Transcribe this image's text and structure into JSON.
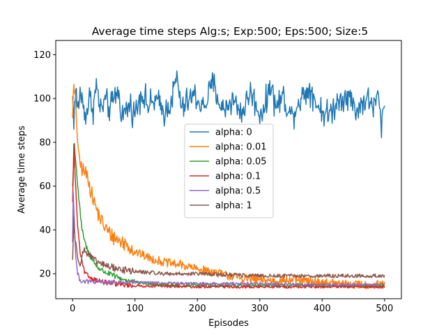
{
  "chart_data": {
    "type": "line",
    "title": "Average time steps Alg:s; Exp:500; Eps:500; Size:5",
    "xlabel": "Episodes",
    "ylabel": "Average time steps",
    "xlim": [
      -27,
      527
    ],
    "ylim": [
      8.6,
      126.5
    ],
    "xticks": [
      0,
      100,
      200,
      300,
      400,
      500
    ],
    "yticks": [
      20,
      40,
      60,
      80,
      100,
      120
    ],
    "grid": false,
    "legend_position": "center",
    "series": [
      {
        "name": "alpha: 0",
        "color": "#1f77b4",
        "kind": "noisy",
        "level": 97.5,
        "amplitude": 7,
        "values_sampled": [
          [
            0,
            102
          ],
          [
            2,
            86
          ],
          [
            5,
            110
          ],
          [
            8,
            91
          ],
          [
            12,
            108
          ],
          [
            17,
            96
          ],
          [
            22,
            88
          ],
          [
            27,
            103
          ],
          [
            33,
            94
          ],
          [
            38,
            113
          ],
          [
            45,
            92
          ],
          [
            52,
            100
          ],
          [
            60,
            93
          ],
          [
            72,
            109
          ],
          [
            80,
            88
          ],
          [
            92,
            97
          ],
          [
            100,
            89
          ],
          [
            110,
            108
          ],
          [
            122,
            95
          ],
          [
            133,
            101
          ],
          [
            148,
            90
          ],
          [
            160,
            103
          ],
          [
            167,
            120
          ],
          [
            175,
            92
          ],
          [
            183,
            99
          ],
          [
            195,
            105
          ],
          [
            210,
            94
          ],
          [
            225,
            115
          ],
          [
            240,
            92
          ],
          [
            256,
            101
          ],
          [
            272,
            90
          ],
          [
            285,
            108
          ],
          [
            300,
            89
          ],
          [
            312,
            99
          ],
          [
            316,
            118
          ],
          [
            325,
            95
          ],
          [
            338,
            104
          ],
          [
            350,
            87
          ],
          [
            365,
            102
          ],
          [
            380,
            111
          ],
          [
            395,
            94
          ],
          [
            410,
            88
          ],
          [
            425,
            100
          ],
          [
            440,
            106
          ],
          [
            455,
            92
          ],
          [
            470,
            102
          ],
          [
            485,
            95
          ],
          [
            490,
            108
          ],
          [
            494,
            78
          ],
          [
            500,
            97
          ]
        ]
      },
      {
        "name": "alpha: 0.01",
        "color": "#ff7f0e",
        "kind": "decay",
        "peak_x": 2,
        "peak_y": 105,
        "start_y": 94,
        "level": 15,
        "noise": 2,
        "values_sampled": [
          [
            0,
            94
          ],
          [
            2,
            105
          ],
          [
            5,
            97
          ],
          [
            10,
            72
          ],
          [
            15,
            68
          ],
          [
            20,
            66
          ],
          [
            25,
            64
          ],
          [
            30,
            57
          ],
          [
            40,
            48
          ],
          [
            50,
            42
          ],
          [
            60,
            38
          ],
          [
            75,
            35
          ],
          [
            90,
            33
          ],
          [
            100,
            30
          ],
          [
            125,
            27
          ],
          [
            150,
            25
          ],
          [
            175,
            24
          ],
          [
            200,
            22
          ],
          [
            225,
            21
          ],
          [
            250,
            19
          ],
          [
            275,
            18
          ],
          [
            300,
            17
          ],
          [
            350,
            17
          ],
          [
            400,
            16
          ],
          [
            450,
            15
          ],
          [
            500,
            15
          ]
        ]
      },
      {
        "name": "alpha: 0.05",
        "color": "#2ca02c",
        "kind": "decay",
        "peak_x": 3,
        "peak_y": 79,
        "start_y": 60,
        "level": 14.5,
        "noise": 0.7,
        "values_sampled": [
          [
            0,
            60
          ],
          [
            3,
            79
          ],
          [
            6,
            68
          ],
          [
            10,
            54
          ],
          [
            15,
            40
          ],
          [
            20,
            34
          ],
          [
            25,
            30
          ],
          [
            30,
            27
          ],
          [
            40,
            23
          ],
          [
            50,
            21
          ],
          [
            75,
            18
          ],
          [
            100,
            16
          ],
          [
            150,
            15
          ],
          [
            200,
            15
          ],
          [
            250,
            14.5
          ],
          [
            300,
            14.5
          ],
          [
            400,
            14.5
          ],
          [
            500,
            14.5
          ]
        ]
      },
      {
        "name": "alpha: 0.1",
        "color": "#d62728",
        "kind": "decay",
        "peak_x": 2,
        "peak_y": 79,
        "start_y": 52,
        "level": 14,
        "noise": 0.6,
        "values_sampled": [
          [
            0,
            52
          ],
          [
            2,
            79
          ],
          [
            4,
            65
          ],
          [
            8,
            42
          ],
          [
            12,
            30
          ],
          [
            16,
            24
          ],
          [
            20,
            20
          ],
          [
            30,
            18
          ],
          [
            40,
            17
          ],
          [
            60,
            15.5
          ],
          [
            80,
            15
          ],
          [
            100,
            14.5
          ],
          [
            200,
            14
          ],
          [
            300,
            14
          ],
          [
            400,
            14
          ],
          [
            500,
            14
          ]
        ]
      },
      {
        "name": "alpha: 0.5",
        "color": "#9467bd",
        "kind": "decay",
        "peak_x": 1,
        "peak_y": 57,
        "start_y": 35,
        "level": 15.5,
        "noise": 0.6,
        "values_sampled": [
          [
            0,
            35
          ],
          [
            1,
            57
          ],
          [
            3,
            42
          ],
          [
            5,
            28
          ],
          [
            8,
            20
          ],
          [
            12,
            17
          ],
          [
            20,
            16.5
          ],
          [
            50,
            16
          ],
          [
            100,
            16
          ],
          [
            200,
            15.5
          ],
          [
            300,
            15.5
          ],
          [
            400,
            15
          ],
          [
            500,
            15
          ]
        ]
      },
      {
        "name": "alpha: 1",
        "color": "#8c564b",
        "kind": "decay",
        "peak_x": 2,
        "peak_y": 46,
        "start_y": 26,
        "level": 19,
        "noise": 0.9,
        "values_sampled": [
          [
            0,
            26
          ],
          [
            2,
            46
          ],
          [
            4,
            35
          ],
          [
            8,
            28
          ],
          [
            12,
            25
          ],
          [
            18,
            31
          ],
          [
            25,
            29
          ],
          [
            35,
            26
          ],
          [
            50,
            24
          ],
          [
            75,
            22
          ],
          [
            100,
            21
          ],
          [
            150,
            20
          ],
          [
            200,
            20
          ],
          [
            250,
            19.5
          ],
          [
            300,
            19
          ],
          [
            400,
            19
          ],
          [
            500,
            19
          ]
        ]
      }
    ]
  }
}
